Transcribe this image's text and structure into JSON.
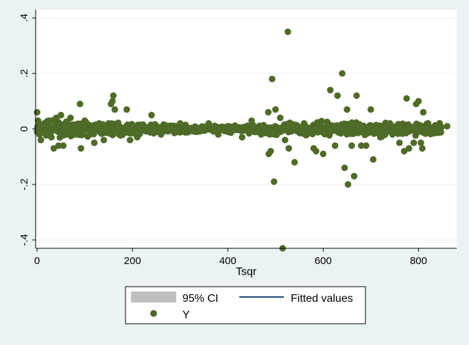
{
  "chart_data": {
    "type": "scatter",
    "xlabel": "Tsqr",
    "ylabel": "",
    "xlim": [
      -3,
      880
    ],
    "ylim": [
      -0.43,
      0.43
    ],
    "x_ticks": [
      0,
      200,
      400,
      600,
      800
    ],
    "x_tick_labels": [
      "0",
      "200",
      "400",
      "600",
      "800"
    ],
    "y_ticks": [
      -0.4,
      -0.2,
      0,
      0.2,
      0.4
    ],
    "y_tick_labels": [
      "-.4",
      "-.2",
      "0",
      ".2",
      ".4"
    ],
    "grid": "horizontal",
    "legend_position": "bottom",
    "legend": [
      "95% CI",
      "Fitted values",
      "Y"
    ],
    "colors": {
      "points": "#4f6b28",
      "fitted_line": "#1a476f",
      "ci_band": "#bfbfbf",
      "plot_bg": "#ffffff",
      "outer_bg": "#eaf2f3"
    },
    "series": [
      {
        "name": "Y",
        "points": [
          [
            0,
            0.06
          ],
          [
            2,
            0.03
          ],
          [
            5,
            -0.02
          ],
          [
            8,
            -0.04
          ],
          [
            10,
            0.01
          ],
          [
            15,
            0.02
          ],
          [
            20,
            -0.01
          ],
          [
            25,
            0.03
          ],
          [
            30,
            -0.03
          ],
          [
            35,
            -0.07
          ],
          [
            40,
            0.04
          ],
          [
            45,
            -0.06
          ],
          [
            50,
            0.05
          ],
          [
            55,
            -0.06
          ],
          [
            60,
            -0.02
          ],
          [
            65,
            0.01
          ],
          [
            70,
            0.04
          ],
          [
            80,
            -0.02
          ],
          [
            90,
            0.09
          ],
          [
            92,
            -0.07
          ],
          [
            100,
            0.03
          ],
          [
            110,
            -0.02
          ],
          [
            120,
            -0.05
          ],
          [
            130,
            0.02
          ],
          [
            140,
            -0.04
          ],
          [
            150,
            0.02
          ],
          [
            155,
            0.09
          ],
          [
            158,
            0.1
          ],
          [
            160,
            0.12
          ],
          [
            163,
            0.07
          ],
          [
            170,
            0.01
          ],
          [
            188,
            0.07
          ],
          [
            195,
            -0.04
          ],
          [
            210,
            -0.03
          ],
          [
            240,
            0.05
          ],
          [
            260,
            -0.02
          ],
          [
            280,
            0.01
          ],
          [
            300,
            0.02
          ],
          [
            330,
            -0.01
          ],
          [
            360,
            0.02
          ],
          [
            380,
            -0.02
          ],
          [
            400,
            0.01
          ],
          [
            430,
            -0.03
          ],
          [
            450,
            0.03
          ],
          [
            470,
            -0.02
          ],
          [
            485,
            0.06
          ],
          [
            486,
            -0.09
          ],
          [
            490,
            -0.08
          ],
          [
            493,
            0.18
          ],
          [
            497,
            -0.19
          ],
          [
            500,
            0.07
          ],
          [
            510,
            0.04
          ],
          [
            515,
            -0.43
          ],
          [
            520,
            -0.04
          ],
          [
            526,
            0.35
          ],
          [
            528,
            -0.07
          ],
          [
            540,
            -0.12
          ],
          [
            560,
            0.02
          ],
          [
            580,
            -0.07
          ],
          [
            585,
            -0.08
          ],
          [
            600,
            -0.09
          ],
          [
            610,
            0.02
          ],
          [
            615,
            0.14
          ],
          [
            625,
            -0.06
          ],
          [
            630,
            0.12
          ],
          [
            640,
            0.2
          ],
          [
            645,
            -0.14
          ],
          [
            650,
            0.07
          ],
          [
            652,
            -0.2
          ],
          [
            660,
            -0.06
          ],
          [
            665,
            -0.17
          ],
          [
            670,
            0.12
          ],
          [
            680,
            -0.06
          ],
          [
            690,
            -0.06
          ],
          [
            700,
            0.07
          ],
          [
            705,
            -0.11
          ],
          [
            720,
            -0.03
          ],
          [
            740,
            0.02
          ],
          [
            760,
            -0.05
          ],
          [
            770,
            -0.08
          ],
          [
            775,
            0.11
          ],
          [
            780,
            -0.07
          ],
          [
            790,
            -0.05
          ],
          [
            795,
            0.09
          ],
          [
            800,
            0.1
          ],
          [
            805,
            -0.05
          ],
          [
            808,
            -0.07
          ],
          [
            810,
            0.06
          ],
          [
            820,
            0.02
          ],
          [
            840,
            0.01
          ],
          [
            860,
            0.01
          ]
        ]
      }
    ]
  }
}
